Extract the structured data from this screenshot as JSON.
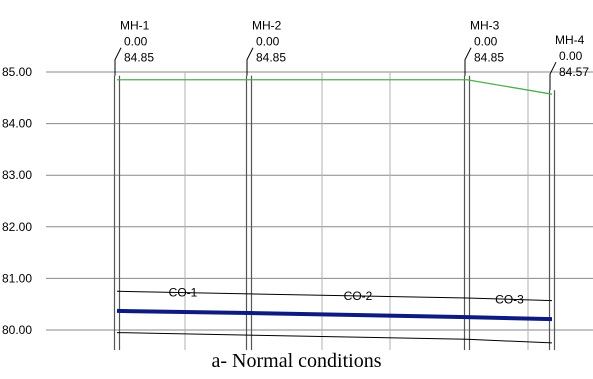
{
  "caption": "a- Normal conditions",
  "chart_data": {
    "type": "line",
    "title": "",
    "xlabel": "",
    "ylabel": "",
    "ylim": [
      79.9,
      85.3
    ],
    "y_ticks": [
      "80.00",
      "81.00",
      "82.00",
      "83.00",
      "84.00",
      "85.00"
    ],
    "x_range": [
      0,
      3
    ],
    "grid": true,
    "manholes": [
      {
        "name": "MH-1",
        "depth": "0.00",
        "elev_label": "84.85",
        "x": 0,
        "elev": 84.85
      },
      {
        "name": "MH-2",
        "depth": "0.00",
        "elev_label": "84.85",
        "x": 1,
        "elev": 84.85
      },
      {
        "name": "MH-3",
        "depth": "0.00",
        "elev_label": "84.85",
        "x": 2,
        "elev": 84.85
      },
      {
        "name": "MH-4",
        "depth": "0.00",
        "elev_label": "84.57",
        "x": 3,
        "elev": 84.57
      }
    ],
    "conduits": [
      {
        "name": "CO-1",
        "from": 0,
        "to": 1
      },
      {
        "name": "CO-2",
        "from": 1,
        "to": 2
      },
      {
        "name": "CO-3",
        "from": 2,
        "to": 3
      }
    ],
    "series": [
      {
        "role": "ground",
        "color": "#4caf50",
        "x": [
          0,
          1,
          2,
          3
        ],
        "y": [
          84.85,
          84.85,
          84.85,
          84.57
        ]
      },
      {
        "role": "crown",
        "color": "#000000",
        "x": [
          0,
          1,
          2,
          3
        ],
        "y": [
          80.75,
          80.7,
          80.62,
          80.57
        ]
      },
      {
        "role": "water",
        "color": "#0d1a80",
        "x": [
          0,
          1,
          2,
          3
        ],
        "y": [
          80.37,
          80.33,
          80.25,
          80.21
        ]
      },
      {
        "role": "invert",
        "color": "#000000",
        "x": [
          0,
          1,
          2,
          3
        ],
        "y": [
          79.95,
          79.9,
          79.82,
          79.75
        ]
      }
    ]
  }
}
